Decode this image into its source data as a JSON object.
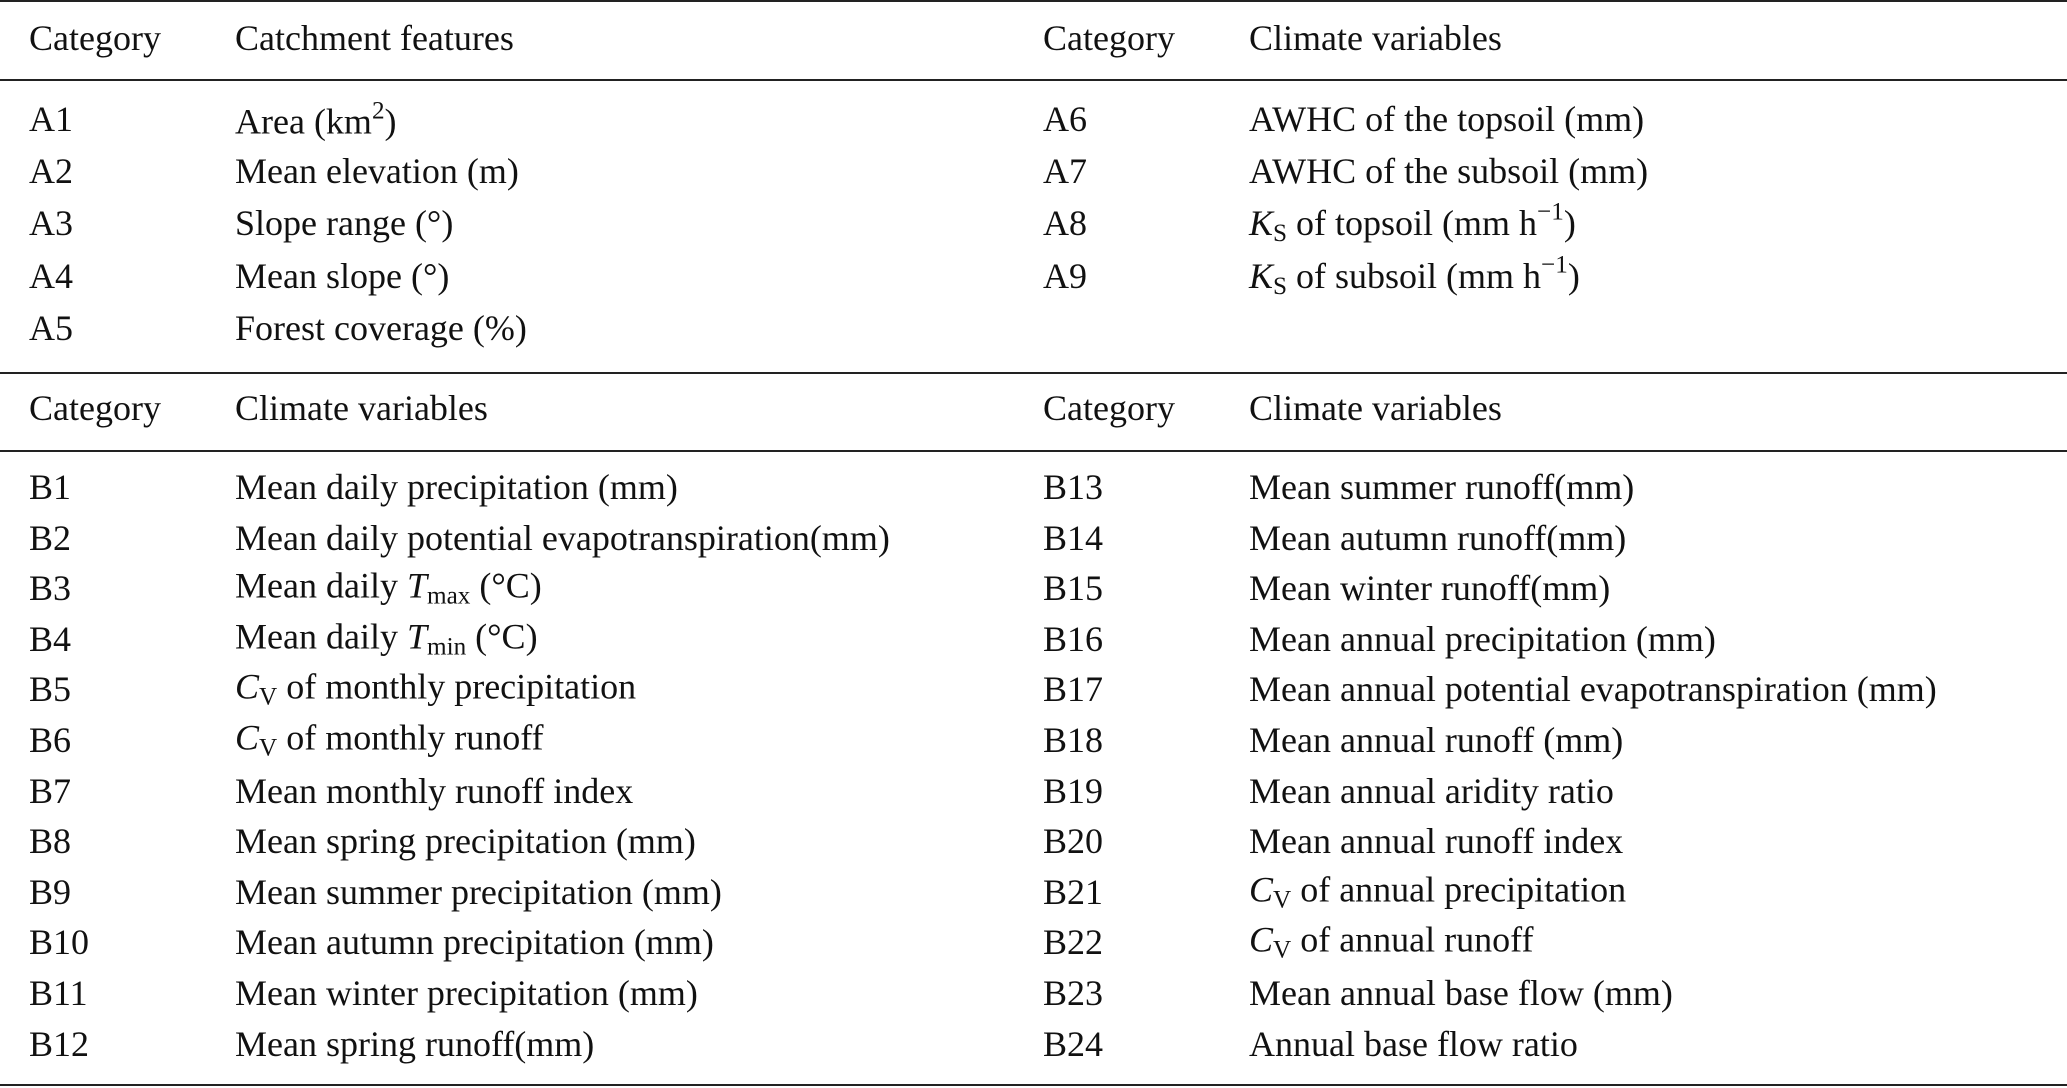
{
  "sections": [
    {
      "header": [
        "Category",
        "Catchment features",
        "Category",
        "Climate variables"
      ],
      "rows": [
        [
          "A1",
          [
            "Area (km",
            {
              "text": "2",
              "style": "sup"
            },
            ")"
          ],
          "A6",
          "AWHC of the topsoil (mm)"
        ],
        [
          "A2",
          "Mean elevation (m)",
          "A7",
          "AWHC of the subsoil (mm)"
        ],
        [
          "A3",
          "Slope range (°)",
          "A8",
          [
            {
              "text": "K",
              "style": "i"
            },
            {
              "text": "S",
              "style": "sub"
            },
            " of topsoil (mm h",
            {
              "text": "−1",
              "style": "sup"
            },
            ")"
          ]
        ],
        [
          "A4",
          "Mean slope (°)",
          "A9",
          [
            {
              "text": "K",
              "style": "i"
            },
            {
              "text": "S",
              "style": "sub"
            },
            " of subsoil (mm h",
            {
              "text": "−1",
              "style": "sup"
            },
            ")"
          ]
        ],
        [
          "A5",
          "Forest coverage (%)"
        ]
      ]
    },
    {
      "header": [
        "Category",
        "Climate variables",
        "Category",
        "Climate variables"
      ],
      "rows": [
        [
          "B1",
          "Mean daily precipitation (mm)",
          "B13",
          "Mean summer runoff(mm)"
        ],
        [
          "B2",
          "Mean daily potential evapotranspiration(mm)",
          "B14",
          "Mean autumn runoff(mm)"
        ],
        [
          "B3",
          [
            "Mean daily ",
            {
              "text": "T",
              "style": "i"
            },
            {
              "text": "max",
              "style": "sub"
            },
            " (°C)"
          ],
          "B15",
          "Mean winter runoff(mm)"
        ],
        [
          "B4",
          [
            "Mean daily ",
            {
              "text": "T",
              "style": "i"
            },
            {
              "text": "min",
              "style": "sub"
            },
            " (°C)"
          ],
          "B16",
          "Mean annual precipitation (mm)"
        ],
        [
          "B5",
          [
            {
              "text": "C",
              "style": "i"
            },
            {
              "text": "V",
              "style": "sub"
            },
            " of monthly precipitation"
          ],
          "B17",
          "Mean annual potential evapotranspiration (mm)"
        ],
        [
          "B6",
          [
            {
              "text": "C",
              "style": "i"
            },
            {
              "text": "V",
              "style": "sub"
            },
            " of monthly runoff"
          ],
          "B18",
          "Mean annual runoff (mm)"
        ],
        [
          "B7",
          "Mean monthly runoff index",
          "B19",
          "Mean annual aridity ratio"
        ],
        [
          "B8",
          "Mean spring precipitation (mm)",
          "B20",
          "Mean annual runoff index"
        ],
        [
          "B9",
          "Mean summer precipitation (mm)",
          "B21",
          [
            {
              "text": "C",
              "style": "i"
            },
            {
              "text": "V",
              "style": "sub"
            },
            " of annual precipitation"
          ]
        ],
        [
          "B10",
          "Mean autumn precipitation (mm)",
          "B22",
          [
            {
              "text": "C",
              "style": "i"
            },
            {
              "text": "V",
              "style": "sub"
            },
            " of annual runoff"
          ]
        ],
        [
          "B11",
          "Mean winter precipitation (mm)",
          "B23",
          "Mean annual base flow (mm)"
        ],
        [
          "B12",
          "Mean spring runoff(mm)",
          "B24",
          "Annual base flow ratio"
        ]
      ]
    }
  ]
}
